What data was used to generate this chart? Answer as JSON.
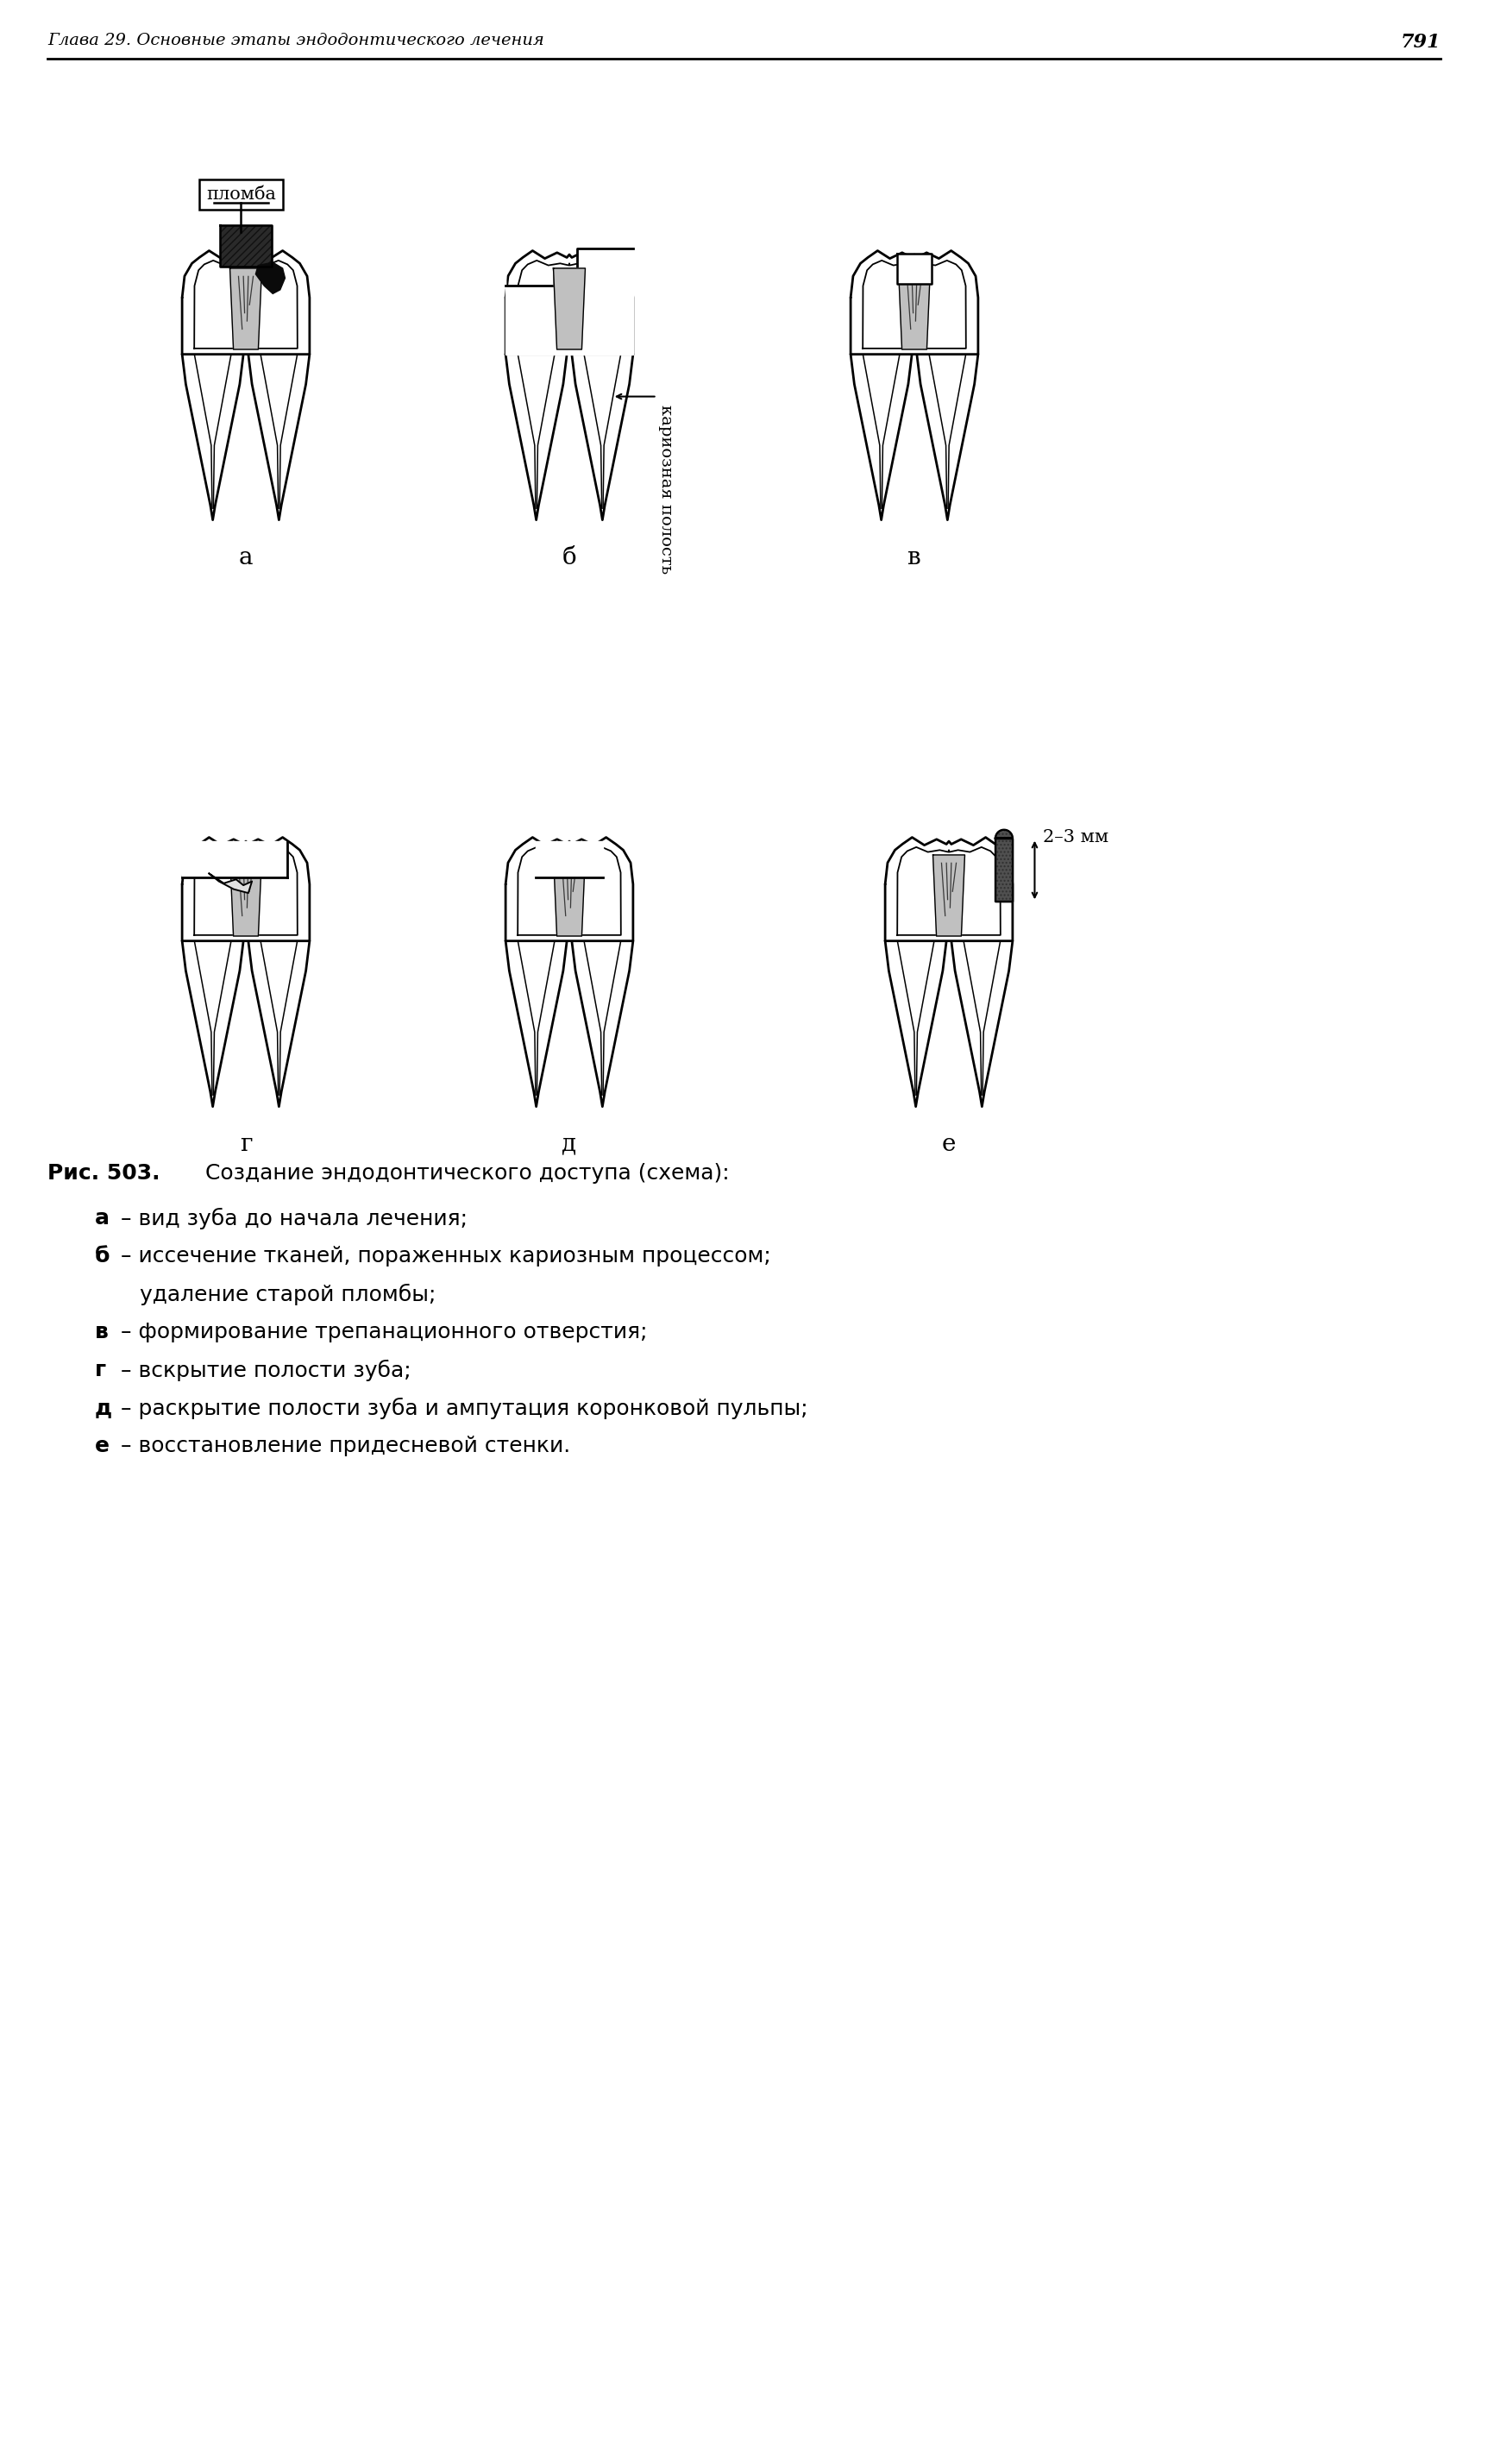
{
  "page_header": "Глава 29. Основные этапы эндодонтического лечения",
  "page_number": "791",
  "label_a": "а",
  "label_b": "б",
  "label_v": "в",
  "label_g": "г",
  "label_d": "д",
  "label_e": "е",
  "annotation_plomba": "пломба",
  "annotation_karioznaya": "кариозная полость",
  "annotation_2_3mm": "2–3 мм",
  "caption_bold": "Рис. 503.",
  "caption_main": " Создание эндодонтического доступа (схема):",
  "caption_lines": [
    [
      "bold",
      "а",
      " – вид зуба до начала лечения;"
    ],
    [
      "bold",
      "б",
      " – иссечение тканей, пораженных кариозным процессом;"
    ],
    [
      "normal",
      "",
      "    удаление старой пломбы;"
    ],
    [
      "bold",
      "в",
      " – формирование трепанационного отверстия;"
    ],
    [
      "bold",
      "г",
      " – вскрытие полости зуба;"
    ],
    [
      "bold",
      "д",
      " – раскрытие полости зуба и ампутация коронковой пульпы;"
    ],
    [
      "bold",
      "е",
      " – восстановление придесневой стенки."
    ]
  ],
  "bg": "#ffffff",
  "lc": "#000000"
}
